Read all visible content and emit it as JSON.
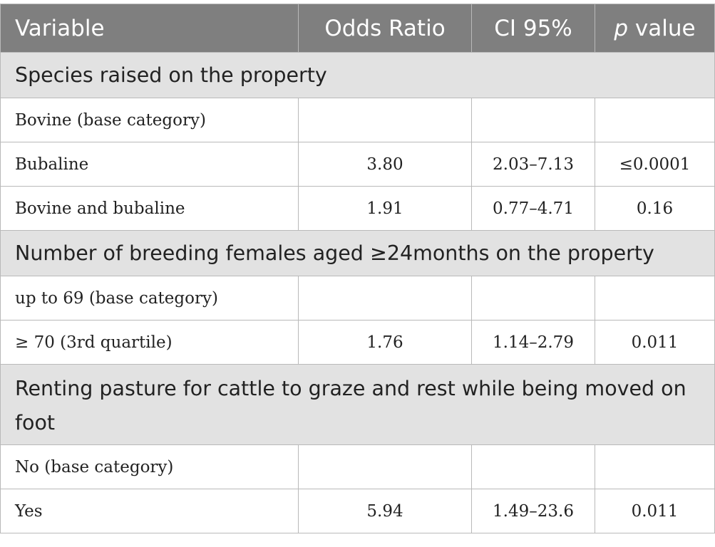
{
  "header": {
    "variable": "Variable",
    "odds_ratio": "Odds Ratio",
    "ci": "CI 95%",
    "p_italic": "p",
    "p_rest": " value"
  },
  "sections": [
    {
      "title": "Species raised on the property",
      "rows": [
        {
          "variable": "Bovine (base category)",
          "or": "",
          "ci": "",
          "p": ""
        },
        {
          "variable": "Bubaline",
          "or": "3.80",
          "ci": "2.03–7.13",
          "p": "≤0.0001"
        },
        {
          "variable": "Bovine and bubaline",
          "or": "1.91",
          "ci": "0.77–4.71",
          "p": "0.16"
        }
      ]
    },
    {
      "title": "Number of breeding females aged ≥24months on the property",
      "rows": [
        {
          "variable": "up to 69 (base category)",
          "or": "",
          "ci": "",
          "p": ""
        },
        {
          "variable": "≥ 70 (3rd quartile)",
          "or": "1.76",
          "ci": "1.14–2.79",
          "p": "0.011"
        }
      ]
    },
    {
      "title": "Renting pasture for cattle to graze and rest while being moved on foot",
      "rows": [
        {
          "variable": "No (base category)",
          "or": "",
          "ci": "",
          "p": ""
        },
        {
          "variable": "Yes",
          "or": "5.94",
          "ci": "1.49–23.6",
          "p": "0.011"
        }
      ]
    }
  ]
}
